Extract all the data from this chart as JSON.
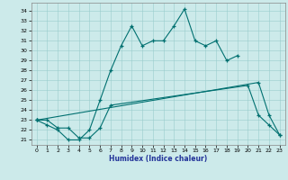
{
  "xlabel": "Humidex (Indice chaleur)",
  "bg_color": "#cceaea",
  "line_color": "#007070",
  "grid_color": "#99cccc",
  "xlim": [
    -0.5,
    23.5
  ],
  "ylim": [
    20.5,
    34.8
  ],
  "yticks": [
    21,
    22,
    23,
    24,
    25,
    26,
    27,
    28,
    29,
    30,
    31,
    32,
    33,
    34
  ],
  "xticks": [
    0,
    1,
    2,
    3,
    4,
    5,
    6,
    7,
    8,
    9,
    10,
    11,
    12,
    13,
    14,
    15,
    16,
    17,
    18,
    19,
    20,
    21,
    22,
    23
  ],
  "line1": {
    "x": [
      0,
      1,
      2,
      3,
      4,
      5,
      6,
      7,
      8,
      9,
      10,
      11,
      12,
      13,
      14,
      15,
      16,
      17,
      18,
      19
    ],
    "y": [
      23,
      22.5,
      22,
      21,
      21,
      22,
      25,
      28,
      30.5,
      32.5,
      30.5,
      31.0,
      31.0,
      32.5,
      34.2,
      31.0,
      30.5,
      31.0,
      29.0,
      29.5
    ]
  },
  "line2": {
    "x": [
      0,
      1,
      2,
      3,
      4,
      5,
      6,
      7,
      20,
      21,
      22,
      23
    ],
    "y": [
      23,
      23,
      22.2,
      22.2,
      21.2,
      21.2,
      22.2,
      24.5,
      26.5,
      23.5,
      22.5,
      21.5
    ]
  },
  "line3": {
    "x": [
      0,
      21,
      22,
      23
    ],
    "y": [
      23,
      26.8,
      23.5,
      21.5
    ]
  }
}
